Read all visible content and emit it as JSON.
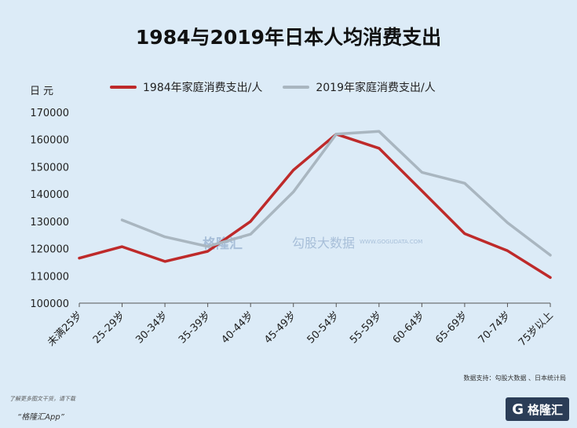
{
  "title": "1984与2019年日本人均消费支出",
  "unit_label": "日元",
  "legend": [
    {
      "label": "1984年家庭消费支出/人",
      "color": "#be2a2a"
    },
    {
      "label": "2019年家庭消费支出/人",
      "color": "#a9b6c0"
    }
  ],
  "watermark": {
    "left_logo": "格隆汇",
    "right_logo": "勾股大数据",
    "right_sub": "WWW.GOGUDATA.COM"
  },
  "source": "数据支持：勾股大数据 、日本统计局",
  "footer": {
    "note": "了解更多图文干货，请下载",
    "app": "“格隆汇App”",
    "logo_text": "格隆汇",
    "logo_mark": "G"
  },
  "chart_data": {
    "type": "line",
    "title": "1984与2019年日本人均消费支出",
    "ylabel": "日元",
    "ylim": [
      100000,
      170000
    ],
    "yticks": [
      100000,
      110000,
      120000,
      130000,
      140000,
      150000,
      160000,
      170000
    ],
    "categories": [
      "未满25岁",
      "25-29岁",
      "30-34岁",
      "35-39岁",
      "40-44岁",
      "45-49岁",
      "50-54岁",
      "55-59岁",
      "60-64岁",
      "65-69岁",
      "70-74岁",
      "75岁以上"
    ],
    "series": [
      {
        "name": "1984年家庭消费支出/人",
        "color": "#be2a2a",
        "values": [
          116500,
          120700,
          115300,
          119000,
          130000,
          148800,
          162000,
          156800,
          141200,
          125500,
          119200,
          109400
        ]
      },
      {
        "name": "2019年家庭消费支出/人",
        "color": "#a9b6c0",
        "values": [
          null,
          130500,
          124300,
          120800,
          125300,
          140800,
          162000,
          163000,
          148000,
          144000,
          129500,
          117600
        ]
      }
    ],
    "grid": false,
    "legend_position": "top"
  }
}
